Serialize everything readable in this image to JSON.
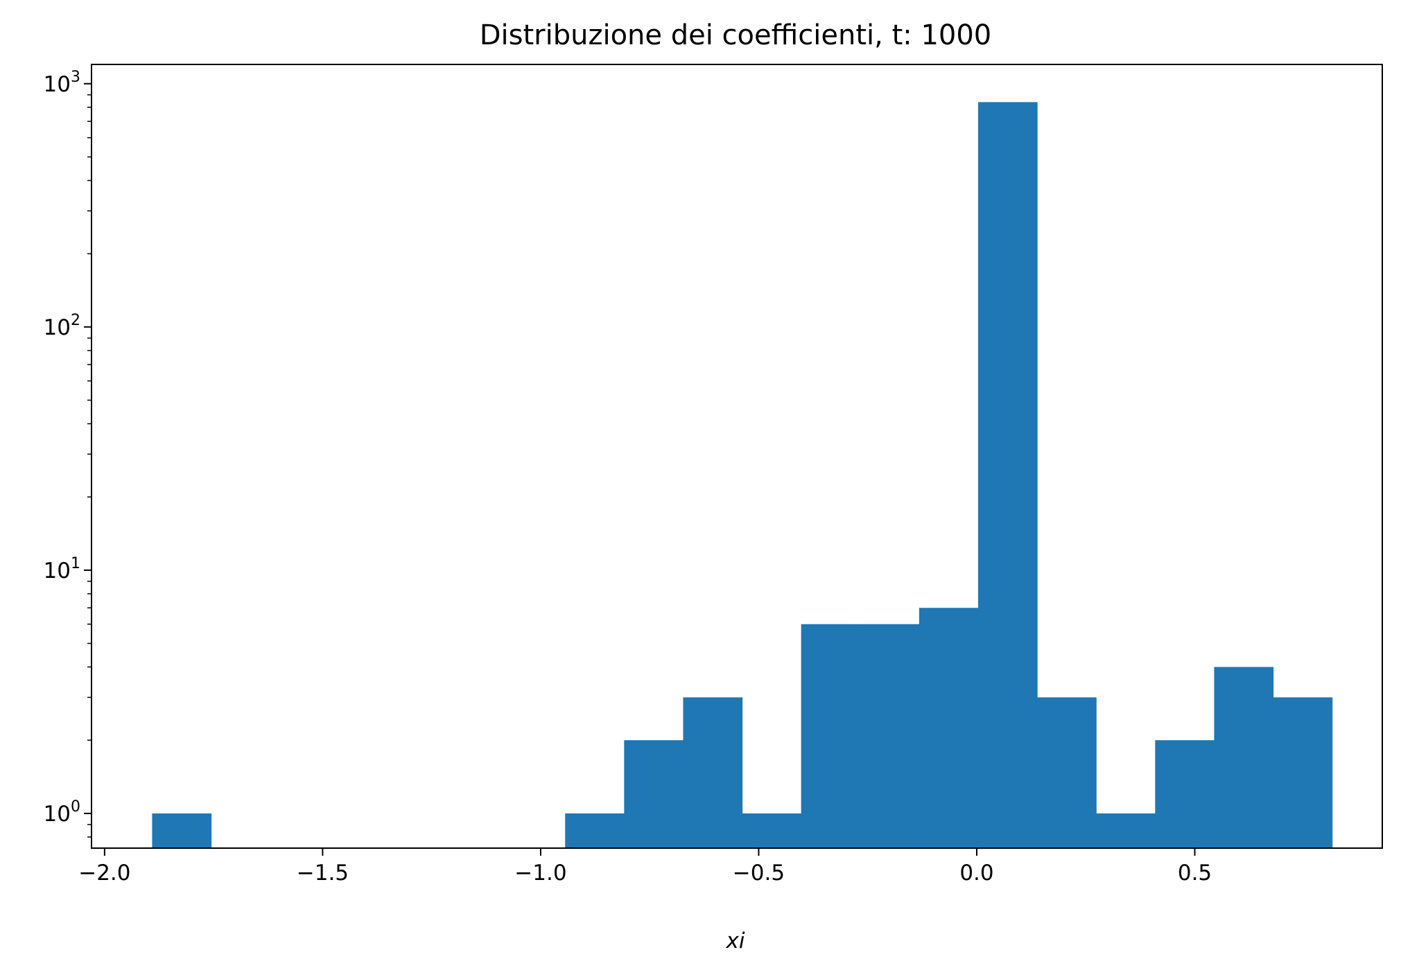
{
  "chart_data": {
    "type": "bar",
    "title": "Distribuzione dei coefficienti, t: 1000",
    "xlabel": "xi",
    "ylabel": "",
    "yscale": "log",
    "xlim": [
      -2.03,
      0.93
    ],
    "ylim": [
      0.72,
      1200
    ],
    "grid": false,
    "color": "#1f77b4",
    "bin_width": 0.1353,
    "bins": [
      {
        "start": -1.891,
        "value": 1
      },
      {
        "start": -1.7557,
        "value": 0
      },
      {
        "start": -1.6204,
        "value": 0
      },
      {
        "start": -1.4851,
        "value": 0
      },
      {
        "start": -1.3498,
        "value": 0
      },
      {
        "start": -1.2145,
        "value": 0
      },
      {
        "start": -1.0792,
        "value": 0
      },
      {
        "start": -0.9439,
        "value": 1
      },
      {
        "start": -0.8086,
        "value": 2
      },
      {
        "start": -0.6733,
        "value": 3
      },
      {
        "start": -0.538,
        "value": 1
      },
      {
        "start": -0.4027,
        "value": 6
      },
      {
        "start": -0.2674,
        "value": 6
      },
      {
        "start": -0.1321,
        "value": 7
      },
      {
        "start": 0.0032,
        "value": 840
      },
      {
        "start": 0.1385,
        "value": 3
      },
      {
        "start": 0.2738,
        "value": 1
      },
      {
        "start": 0.4091,
        "value": 2
      },
      {
        "start": 0.5444,
        "value": 4
      },
      {
        "start": 0.6797,
        "value": 3
      }
    ],
    "xticks": [
      {
        "value": -2.0,
        "label": "−2.0"
      },
      {
        "value": -1.5,
        "label": "−1.5"
      },
      {
        "value": -1.0,
        "label": "−1.0"
      },
      {
        "value": -0.5,
        "label": "−0.5"
      },
      {
        "value": 0.0,
        "label": "0.0"
      },
      {
        "value": 0.5,
        "label": "0.5"
      }
    ],
    "yticks": [
      {
        "value": 1,
        "base": "10",
        "exp": "0"
      },
      {
        "value": 10,
        "base": "10",
        "exp": "1"
      },
      {
        "value": 100,
        "base": "10",
        "exp": "2"
      },
      {
        "value": 1000,
        "base": "10",
        "exp": "3"
      }
    ]
  }
}
